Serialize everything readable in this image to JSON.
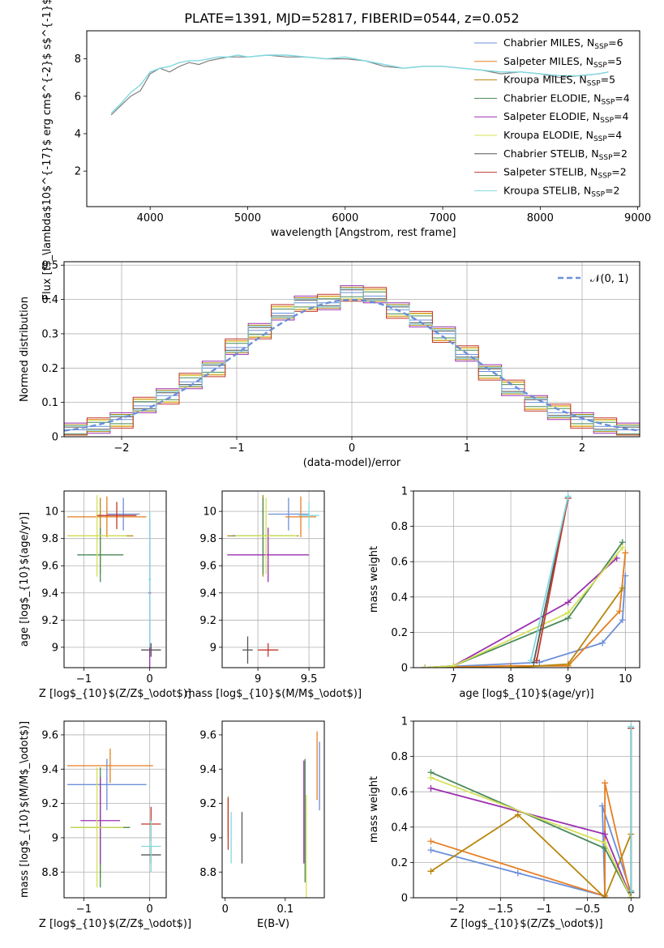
{
  "title": "PLATE=1391, MJD=52817, FIBERID=0544, z=0.052",
  "legend_labels": [
    "Chabrier MILES, N$_{SSP}$=6",
    "Salpeter MILES, N$_{SSP}$=5",
    "Kroupa MILES, N$_{SSP}$=5",
    "Chabrier ELODIE, N$_{SSP}$=4",
    "Salpeter ELODIE, N$_{SSP}$=4",
    "Kroupa ELODIE, N$_{SSP}$=4",
    "Chabrier STELIB, N$_{SSP}$=2",
    "Salpeter STELIB, N$_{SSP}$=2",
    "Kroupa STELIB, N$_{SSP}$=2"
  ],
  "colors": [
    "#6b8fd8",
    "#e67e22",
    "#b8860b",
    "#4a8a5a",
    "#9b30b0",
    "#d4e157",
    "#555555",
    "#c0392b",
    "#80d8e0"
  ],
  "chart_data": [
    {
      "id": "spectrum",
      "type": "line",
      "xlabel": "wavelength [Angstrom, rest frame]",
      "ylabel": "Flux [f$_\\lambda$10$^{-17}$ erg cm$^{-2}$ s$^{-1}$ A$^{-1}$]",
      "xlim": [
        3350,
        9020
      ],
      "ylim": [
        0.1,
        9.5
      ],
      "xticks": [
        4000,
        5000,
        6000,
        7000,
        8000,
        9000
      ],
      "yticks": [
        2,
        4,
        6,
        8
      ],
      "data_color": "#808080",
      "data_x": [
        3600,
        3700,
        3800,
        3900,
        4000,
        4100,
        4200,
        4300,
        4400,
        4500,
        4600,
        4700,
        4800,
        4900,
        5000,
        5200,
        5400,
        5600,
        5800,
        6000,
        6200,
        6400,
        6600,
        6800,
        7000,
        7200,
        7400,
        7600,
        7800,
        8000,
        8200,
        8400,
        8600,
        8700
      ],
      "data_y": [
        5.0,
        5.5,
        6.0,
        6.3,
        7.2,
        7.5,
        7.3,
        7.6,
        7.8,
        7.7,
        7.9,
        8.0,
        8.1,
        8.1,
        8.1,
        8.2,
        8.1,
        8.1,
        8.0,
        8.0,
        7.9,
        7.6,
        7.5,
        7.6,
        7.6,
        7.5,
        7.4,
        7.2,
        7.3,
        7.2,
        7.0,
        7.1,
        7.2,
        7.3
      ],
      "model_x": [
        3600,
        3700,
        3800,
        3900,
        4000,
        4100,
        4200,
        4300,
        4400,
        4500,
        4600,
        4700,
        4800,
        4900,
        5000,
        5200,
        5400,
        5600,
        5800,
        6000,
        6200,
        6400,
        6600,
        6800,
        7000,
        7200,
        7400,
        7600,
        7800,
        8000,
        8200,
        8400,
        8600,
        8700
      ],
      "model_y": [
        5.1,
        5.6,
        6.2,
        6.6,
        7.3,
        7.5,
        7.6,
        7.8,
        7.9,
        7.9,
        8.0,
        8.1,
        8.1,
        8.2,
        8.1,
        8.2,
        8.2,
        8.1,
        8.0,
        8.1,
        7.9,
        7.7,
        7.5,
        7.6,
        7.6,
        7.5,
        7.4,
        7.3,
        7.3,
        7.2,
        7.1,
        7.1,
        7.2,
        7.3
      ]
    },
    {
      "id": "residuals",
      "type": "line",
      "xlabel": "(data-model)/error",
      "ylabel": "Normed distribution",
      "xlim": [
        -2.5,
        2.5
      ],
      "ylim": [
        0,
        0.51
      ],
      "xticks": [
        -2,
        -1,
        0,
        1,
        2
      ],
      "yticks": [
        0.0,
        0.1,
        0.2,
        0.3,
        0.4,
        0.5
      ],
      "gaussian_label": "$\\mathcal{N}(0,1)$",
      "bins": [
        -2.5,
        -2.3,
        -2.1,
        -1.9,
        -1.7,
        -1.5,
        -1.3,
        -1.1,
        -0.9,
        -0.7,
        -0.5,
        -0.3,
        -0.1,
        0.1,
        0.3,
        0.5,
        0.7,
        0.9,
        1.1,
        1.3,
        1.5,
        1.7,
        1.9,
        2.1,
        2.3,
        2.5
      ],
      "hist_values": [
        0.02,
        0.03,
        0.05,
        0.09,
        0.12,
        0.16,
        0.2,
        0.26,
        0.31,
        0.36,
        0.39,
        0.39,
        0.42,
        0.41,
        0.37,
        0.34,
        0.3,
        0.24,
        0.19,
        0.14,
        0.1,
        0.07,
        0.05,
        0.03,
        0.02
      ]
    },
    {
      "id": "age_vs_Z",
      "type": "scatter",
      "xlabel": "Z [log$_{10}$(Z/Z$_\\odot$)]",
      "ylabel": "age  [log$_{10}$(age/yr)]",
      "xlim": [
        -1.3,
        0.25
      ],
      "ylim": [
        8.85,
        10.15
      ],
      "xticks": [
        -1,
        0
      ],
      "yticks": [
        9.0,
        9.2,
        9.4,
        9.6,
        9.8,
        10.0
      ],
      "points": [
        {
          "x": -0.4,
          "y": 9.98,
          "xerr": 0.25,
          "yerr": 0.12
        },
        {
          "x": -0.65,
          "y": 9.96,
          "xerr": 0.6,
          "yerr": 0.15
        },
        {
          "x": -0.75,
          "y": 9.82,
          "xerr": 0.5,
          "yerr": 0.28
        },
        {
          "x": -0.75,
          "y": 9.68,
          "xerr": 0.35,
          "yerr": 0.2
        },
        {
          "x": 0.0,
          "y": 9.4,
          "xerr": 0.02,
          "yerr": 0.55
        },
        {
          "x": -0.8,
          "y": 9.82,
          "xerr": 0.45,
          "yerr": 0.3
        },
        {
          "x": 0.02,
          "y": 8.98,
          "xerr": 0.15,
          "yerr": 0.05
        },
        {
          "x": -0.5,
          "y": 9.97,
          "xerr": 0.3,
          "yerr": 0.1
        },
        {
          "x": 0.0,
          "y": 9.5,
          "xerr": 0.02,
          "yerr": 0.5
        }
      ]
    },
    {
      "id": "age_vs_mass",
      "type": "scatter",
      "xlabel": "mass [log$_{10}$(M/M$_\\odot$)]",
      "ylabel": "",
      "xlim": [
        8.65,
        9.65
      ],
      "ylim": [
        8.85,
        10.15
      ],
      "xticks": [
        9.0,
        9.5
      ],
      "yticks": [
        9.0,
        9.2,
        9.4,
        9.6,
        9.8,
        10.0
      ],
      "points": [
        {
          "x": 9.3,
          "y": 9.98,
          "xerr": 0.2,
          "yerr": 0.12
        },
        {
          "x": 9.42,
          "y": 9.96,
          "xerr": 0.15,
          "yerr": 0.15
        },
        {
          "x": 9.05,
          "y": 9.82,
          "xerr": 0.35,
          "yerr": 0.3
        },
        {
          "x": 9.05,
          "y": 9.82,
          "xerr": 0.3,
          "yerr": 0.28
        },
        {
          "x": 9.1,
          "y": 9.68,
          "xerr": 0.4,
          "yerr": 0.2
        },
        {
          "x": 9.08,
          "y": 9.82,
          "xerr": 0.3,
          "yerr": 0.28
        },
        {
          "x": 8.9,
          "y": 8.98,
          "xerr": 0.05,
          "yerr": 0.1
        },
        {
          "x": 9.1,
          "y": 8.98,
          "xerr": 0.1,
          "yerr": 0.05
        },
        {
          "x": 9.5,
          "y": 9.97,
          "xerr": 0.1,
          "yerr": 0.1
        }
      ]
    },
    {
      "id": "mass_weight_vs_age",
      "type": "line",
      "xlabel": "age  [log$_{10}$(age/yr)]",
      "ylabel": "mass weight",
      "xlim": [
        6.3,
        10.25
      ],
      "ylim": [
        0,
        1.0
      ],
      "xticks": [
        7,
        8,
        9,
        10
      ],
      "yticks": [
        0.0,
        0.2,
        0.4,
        0.6,
        0.8,
        1.0
      ],
      "series": [
        {
          "x": [
            6.5,
            8.5,
            9.6,
            9.95,
            10.0
          ],
          "y": [
            0.0,
            0.03,
            0.14,
            0.27,
            0.52
          ]
        },
        {
          "x": [
            6.5,
            8.0,
            9.0,
            9.9,
            10.0
          ],
          "y": [
            0.0,
            0.01,
            0.01,
            0.32,
            0.65
          ]
        },
        {
          "x": [
            6.5,
            8.0,
            9.0,
            9.95
          ],
          "y": [
            0.0,
            0.0,
            0.02,
            0.45
          ]
        },
        {
          "x": [
            6.5,
            7.0,
            9.0,
            9.95
          ],
          "y": [
            0.0,
            0.01,
            0.28,
            0.71
          ]
        },
        {
          "x": [
            6.5,
            7.0,
            9.0,
            9.85
          ],
          "y": [
            0.0,
            0.01,
            0.37,
            0.62
          ]
        },
        {
          "x": [
            6.5,
            7.0,
            9.0,
            9.95
          ],
          "y": [
            0.0,
            0.01,
            0.31,
            0.68
          ]
        },
        {
          "x": [
            8.4,
            9.0
          ],
          "y": [
            0.03,
            0.96
          ]
        },
        {
          "x": [
            8.45,
            9.0
          ],
          "y": [
            0.04,
            0.96
          ]
        },
        {
          "x": [
            8.35,
            9.0
          ],
          "y": [
            0.04,
            0.97
          ]
        }
      ]
    },
    {
      "id": "mass_vs_Z",
      "type": "scatter",
      "xlabel": "Z [log$_{10}$(Z/Z$_\\odot$)]",
      "ylabel": "mass [log$_{10}$(M/M$_\\odot$)]",
      "xlim": [
        -1.3,
        0.25
      ],
      "ylim": [
        8.65,
        9.68
      ],
      "xticks": [
        -1,
        0
      ],
      "yticks": [
        8.8,
        9.0,
        9.2,
        9.4,
        9.6
      ],
      "points": [
        {
          "x": -0.65,
          "y": 9.31,
          "xerr": 0.6,
          "yerr": 0.15
        },
        {
          "x": -0.6,
          "y": 9.42,
          "xerr": 0.65,
          "yerr": 0.1
        },
        {
          "x": -0.75,
          "y": 9.06,
          "xerr": 0.45,
          "yerr": 0.3
        },
        {
          "x": -0.75,
          "y": 9.06,
          "xerr": 0.45,
          "yerr": 0.35
        },
        {
          "x": -0.75,
          "y": 9.1,
          "xerr": 0.3,
          "yerr": 0.25
        },
        {
          "x": -0.8,
          "y": 9.06,
          "xerr": 0.4,
          "yerr": 0.35
        },
        {
          "x": 0.02,
          "y": 8.9,
          "xerr": 0.15,
          "yerr": 0.05
        },
        {
          "x": 0.02,
          "y": 9.08,
          "xerr": 0.15,
          "yerr": 0.1
        },
        {
          "x": 0.02,
          "y": 8.95,
          "xerr": 0.15,
          "yerr": 0.15
        }
      ]
    },
    {
      "id": "mass_vs_EBV",
      "type": "scatter",
      "xlabel": "E(B-V)",
      "ylabel": "",
      "xlim": [
        -0.005,
        0.165
      ],
      "ylim": [
        8.65,
        9.68
      ],
      "xticks": [
        0.0,
        0.1
      ],
      "yticks": [
        8.8,
        9.0,
        9.2,
        9.4,
        9.6
      ],
      "points": [
        {
          "x": 0.157,
          "y": 9.36,
          "yerr": 0.2
        },
        {
          "x": 0.153,
          "y": 9.42,
          "yerr": 0.2
        },
        {
          "x": 0.005,
          "y": 9.12,
          "yerr": 0.12
        },
        {
          "x": 0.133,
          "y": 9.1,
          "yerr": 0.36
        },
        {
          "x": 0.131,
          "y": 9.15,
          "yerr": 0.3
        },
        {
          "x": 0.135,
          "y": 8.95,
          "yerr": 0.3
        },
        {
          "x": 0.028,
          "y": 9.0,
          "yerr": 0.15
        },
        {
          "x": 0.005,
          "y": 9.08,
          "yerr": 0.15
        },
        {
          "x": 0.01,
          "y": 9.0,
          "yerr": 0.15
        }
      ]
    },
    {
      "id": "mass_weight_vs_Z",
      "type": "line",
      "xlabel": "Z [log$_{10}$(Z/Z$_\\odot$)]",
      "ylabel": "mass weight",
      "xlim": [
        -2.5,
        0.1
      ],
      "ylim": [
        0,
        1.0
      ],
      "xticks": [
        -2.0,
        -1.5,
        -1.0,
        -0.5,
        0.0
      ],
      "yticks": [
        0.0,
        0.2,
        0.4,
        0.6,
        0.8,
        1.0
      ],
      "series": [
        {
          "x": [
            -2.3,
            -1.3,
            -0.3,
            -0.33,
            0.0
          ],
          "y": [
            0.27,
            0.14,
            0.01,
            0.52,
            0.03
          ]
        },
        {
          "x": [
            -2.3,
            -0.3,
            -0.3,
            0.0
          ],
          "y": [
            0.32,
            0.01,
            0.65,
            0.0
          ]
        },
        {
          "x": [
            -2.3,
            -1.3,
            -0.3,
            0.0
          ],
          "y": [
            0.15,
            0.47,
            0.0,
            0.36
          ]
        },
        {
          "x": [
            -2.3,
            -0.3,
            0.0
          ],
          "y": [
            0.71,
            0.28,
            0.0
          ]
        },
        {
          "x": [
            -2.3,
            -0.3,
            0.0
          ],
          "y": [
            0.62,
            0.36,
            0.0
          ]
        },
        {
          "x": [
            -2.3,
            -0.3,
            0.0
          ],
          "y": [
            0.68,
            0.31,
            0.0
          ]
        },
        {
          "x": [
            0.0,
            0.0
          ],
          "y": [
            0.03,
            0.96
          ]
        },
        {
          "x": [
            0.0,
            0.0
          ],
          "y": [
            0.04,
            0.96
          ]
        },
        {
          "x": [
            0.0,
            0.0
          ],
          "y": [
            0.04,
            0.97
          ]
        }
      ]
    }
  ]
}
